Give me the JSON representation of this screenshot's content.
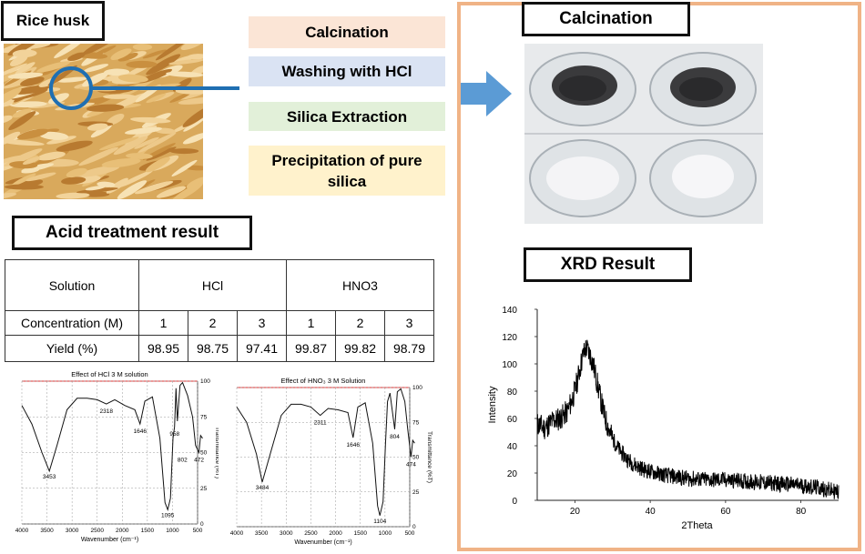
{
  "left": {
    "rice_husk_title": "Rice husk",
    "steps": [
      "Calcination",
      "Washing with HCl",
      "Silica Extraction",
      "Precipitation of pure silica"
    ],
    "colors": {
      "calcination": "#fbe5d6",
      "washing": "#dae3f3",
      "extraction": "#e2f0d9",
      "precipitation": "#fff2cc",
      "connector": "#1f6fb2",
      "arrow": "#5b9bd5"
    }
  },
  "acid": {
    "title": "Acid treatment result",
    "table": {
      "solution_label": "Solution",
      "concentration_label": "Concentration (M)",
      "yield_label": "Yield (%)",
      "groups": [
        "HCl",
        "HNO3"
      ],
      "concentrations": [
        "1",
        "2",
        "3",
        "1",
        "2",
        "3"
      ],
      "yields": [
        "98.95",
        "98.75",
        "97.41",
        "99.87",
        "99.82",
        "98.79"
      ]
    }
  },
  "right": {
    "calcination_title": "Calcination",
    "xrd_title": "XRD Result"
  },
  "chart_data": [
    {
      "type": "line",
      "title": "Effect of HCl 3 M solution",
      "xlabel": "Wavenumber (cm⁻¹)",
      "ylabel": "Transmittance (%T)",
      "xlim": [
        4000,
        500
      ],
      "ylim": [
        0,
        100
      ],
      "xticks": [
        4000,
        3500,
        3000,
        2500,
        2000,
        1500,
        1000,
        500
      ],
      "yticks": [
        0,
        25,
        50,
        75,
        100
      ],
      "x": [
        4000,
        3800,
        3600,
        3453,
        3300,
        3100,
        2900,
        2700,
        2500,
        2318,
        2150,
        1950,
        1750,
        1646,
        1550,
        1400,
        1250,
        1150,
        1095,
        1040,
        990,
        958,
        930,
        902,
        850,
        800,
        700,
        600,
        540,
        472,
        440,
        400
      ],
      "y": [
        83,
        70,
        50,
        37,
        55,
        80,
        88,
        88,
        87,
        84,
        87,
        83,
        80,
        70,
        86,
        89,
        60,
        15,
        10,
        18,
        60,
        68,
        95,
        72,
        97,
        99,
        90,
        75,
        55,
        50,
        62,
        60
      ],
      "annotations": [
        {
          "x": 3453,
          "label": "3453"
        },
        {
          "x": 2318,
          "label": "2318"
        },
        {
          "x": 1646,
          "label": "1646"
        },
        {
          "x": 1095,
          "label": "1095"
        },
        {
          "x": 958,
          "label": "958"
        },
        {
          "x": 802,
          "label": "802"
        },
        {
          "x": 472,
          "label": "472"
        }
      ]
    },
    {
      "type": "line",
      "title": "Effect of HNO₃ 3 M Solution",
      "xlabel": "Wavenumber (cm⁻¹)",
      "ylabel": "Transmittance (%T)",
      "xlim": [
        4000,
        500
      ],
      "ylim": [
        0,
        100
      ],
      "xticks": [
        4000,
        3500,
        3000,
        2500,
        2000,
        1500,
        1000,
        500
      ],
      "yticks": [
        0,
        25,
        50,
        75,
        100
      ],
      "x": [
        4000,
        3800,
        3600,
        3484,
        3300,
        3100,
        2900,
        2700,
        2500,
        2311,
        2150,
        1950,
        1750,
        1646,
        1550,
        1400,
        1250,
        1150,
        1104,
        1040,
        990,
        950,
        900,
        804,
        750,
        680,
        600,
        540,
        474,
        440,
        400
      ],
      "y": [
        86,
        75,
        52,
        32,
        55,
        80,
        88,
        88,
        86,
        80,
        85,
        84,
        82,
        64,
        86,
        89,
        60,
        15,
        8,
        18,
        60,
        90,
        96,
        70,
        97,
        99,
        90,
        70,
        50,
        62,
        60
      ],
      "annotations": [
        {
          "x": 3484,
          "label": "3484"
        },
        {
          "x": 2311,
          "label": "2311"
        },
        {
          "x": 1646,
          "label": "1646"
        },
        {
          "x": 1104,
          "label": "1104"
        },
        {
          "x": 804,
          "label": "804"
        },
        {
          "x": 474,
          "label": "474"
        }
      ]
    },
    {
      "type": "line",
      "title": "",
      "xlabel": "2Theta",
      "ylabel": "Intensity",
      "xlim": [
        10,
        90
      ],
      "ylim": [
        0,
        140
      ],
      "xticks": [
        20,
        40,
        60,
        80
      ],
      "yticks": [
        0,
        20,
        40,
        60,
        80,
        100,
        120,
        140
      ],
      "x": [
        10,
        12,
        14,
        16,
        18,
        19,
        20,
        21,
        22,
        23,
        24,
        25,
        26,
        27,
        28,
        30,
        32,
        34,
        36,
        38,
        40,
        45,
        50,
        55,
        60,
        65,
        70,
        75,
        80,
        85,
        90
      ],
      "y": [
        56,
        53,
        58,
        60,
        65,
        72,
        80,
        92,
        105,
        112,
        107,
        98,
        85,
        72,
        60,
        45,
        36,
        30,
        26,
        23,
        21,
        18,
        16,
        15,
        15,
        14,
        13,
        12,
        11,
        9,
        6
      ]
    }
  ]
}
